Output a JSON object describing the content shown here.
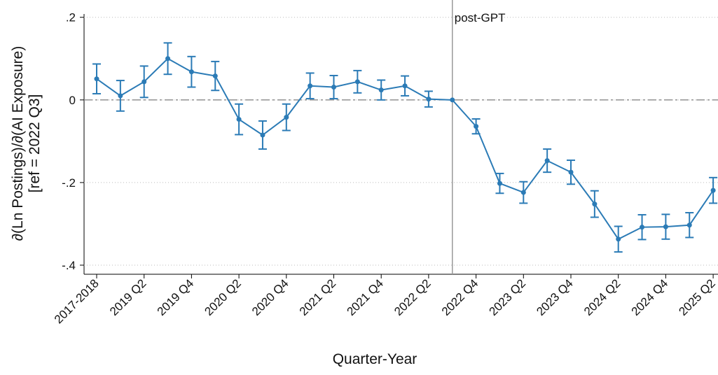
{
  "chart_data": {
    "type": "line",
    "y_label": [
      "∂(Ln Postings)/∂(AI Exposure)",
      "[ref = 2022 Q3]"
    ],
    "x_label": "Quarter-Year",
    "categories": [
      "2017-2018",
      null,
      "2019 Q2",
      null,
      "2019 Q4",
      null,
      "2020 Q2",
      null,
      "2020 Q4",
      null,
      "2021 Q2",
      null,
      "2021 Q4",
      null,
      "2022 Q2",
      null,
      "2022 Q4",
      null,
      "2023 Q2",
      null,
      "2023 Q4",
      null,
      "2024 Q2",
      null,
      "2024 Q4",
      null,
      "2025 Q2"
    ],
    "values": [
      0.051,
      0.01,
      0.044,
      0.1,
      0.068,
      0.058,
      -0.047,
      -0.085,
      -0.042,
      0.034,
      0.031,
      0.044,
      0.024,
      0.034,
      0.002,
      0,
      -0.064,
      -0.202,
      -0.224,
      -0.147,
      -0.175,
      -0.252,
      -0.337,
      -0.308,
      -0.307,
      -0.303,
      -0.219
    ],
    "errors": [
      0.036,
      0.037,
      0.038,
      0.038,
      0.037,
      0.035,
      0.037,
      0.034,
      0.032,
      0.031,
      0.028,
      0.027,
      0.024,
      0.024,
      0.019,
      0,
      0.018,
      0.024,
      0.026,
      0.028,
      0.029,
      0.032,
      0.031,
      0.03,
      0.03,
      0.03,
      0.031
    ],
    "color": "#2b7bb6",
    "ylim": [
      -0.422,
      0.208
    ],
    "yticks": [
      {
        "value": 0.2,
        "label": ".2"
      },
      0,
      {
        "value": -0.2,
        "label": "-.2"
      },
      {
        "value": -0.4,
        "label": "-.4"
      }
    ],
    "grid": true,
    "zero_line": true,
    "annotations": [
      {
        "text": "post-GPT",
        "x": 15
      }
    ]
  }
}
